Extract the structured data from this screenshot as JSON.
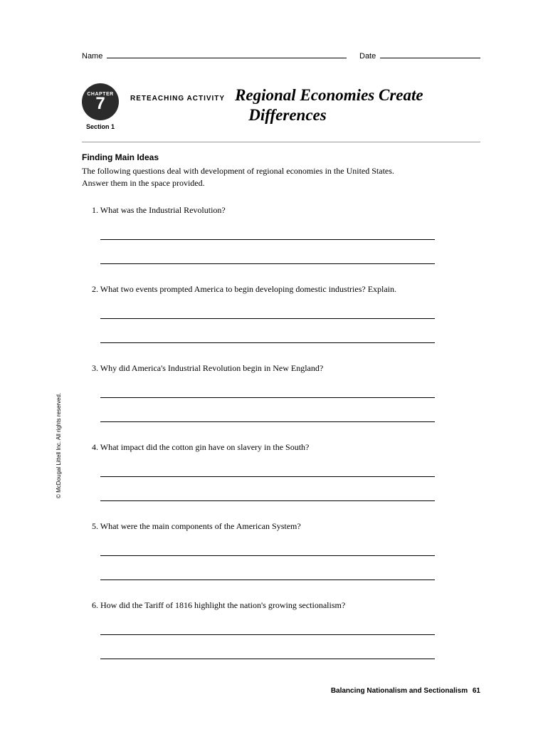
{
  "header": {
    "name_label": "Name",
    "date_label": "Date"
  },
  "chapter": {
    "chapter_word": "CHAPTER",
    "number": "7",
    "section": "Section 1",
    "activity_type": "RETEACHING ACTIVITY",
    "title_line1": "Regional Economies Create",
    "title_line2": "Differences"
  },
  "content": {
    "heading": "Finding Main Ideas",
    "instructions": "The following questions deal with development of regional economies in the United States. Answer them in the space provided."
  },
  "questions": [
    "1. What was the Industrial Revolution?",
    "2. What two events prompted America to begin developing domestic industries? Explain.",
    "3. Why did America's Industrial Revolution begin in New England?",
    "4. What impact did the cotton gin have on slavery in the South?",
    "5. What were the main components of the American System?",
    "6. How did the Tariff of 1816 highlight the nation's growing sectionalism?"
  ],
  "copyright": "© McDougal Littell Inc. All rights reserved.",
  "footer": {
    "title": "Balancing Nationalism and Sectionalism",
    "page": "61"
  },
  "colors": {
    "badge_bg": "#2b2b2b",
    "divider": "#999999",
    "text": "#000000"
  }
}
